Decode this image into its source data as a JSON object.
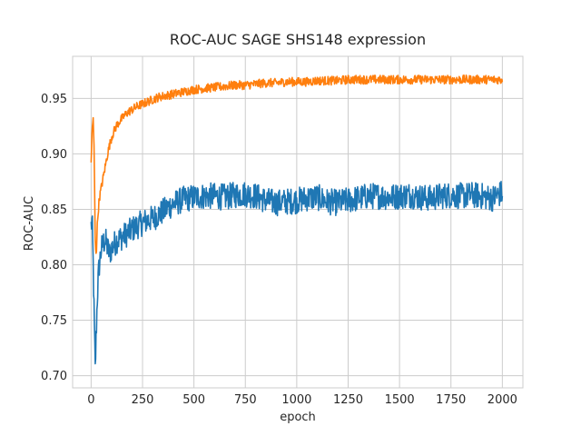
{
  "chart_data": {
    "type": "line",
    "title": "ROC-AUC SAGE SHS148 expression",
    "xlabel": "epoch",
    "ylabel": "ROC-AUC",
    "xlim": [
      -90,
      2100
    ],
    "ylim": [
      0.689,
      0.988
    ],
    "xticks": [
      0,
      250,
      500,
      750,
      1000,
      1250,
      1500,
      1750,
      2000
    ],
    "xtick_labels": [
      "0",
      "250",
      "500",
      "750",
      "1000",
      "1250",
      "1500",
      "1750",
      "2000"
    ],
    "yticks": [
      0.7,
      0.75,
      0.8,
      0.85,
      0.9,
      0.95
    ],
    "ytick_labels": [
      "0.70",
      "0.75",
      "0.80",
      "0.85",
      "0.90",
      "0.95"
    ],
    "grid": true,
    "series": [
      {
        "color": "#1f77b4",
        "x": [
          0,
          5,
          10,
          15,
          20,
          25,
          30,
          35,
          40,
          50,
          60,
          70,
          80,
          90,
          100,
          110,
          125,
          150,
          175,
          200,
          225,
          250,
          275,
          300,
          325,
          350,
          375,
          400,
          425,
          450,
          475,
          500,
          550,
          600,
          650,
          700,
          750,
          800,
          850,
          900,
          950,
          1000,
          1050,
          1100,
          1150,
          1200,
          1250,
          1300,
          1350,
          1400,
          1450,
          1500,
          1550,
          1600,
          1650,
          1700,
          1750,
          1800,
          1850,
          1900,
          1950,
          2000
        ],
        "y": [
          0.835,
          0.84,
          0.8,
          0.75,
          0.705,
          0.74,
          0.77,
          0.79,
          0.8,
          0.815,
          0.82,
          0.822,
          0.815,
          0.81,
          0.815,
          0.818,
          0.822,
          0.825,
          0.828,
          0.832,
          0.835,
          0.838,
          0.84,
          0.842,
          0.845,
          0.848,
          0.852,
          0.855,
          0.857,
          0.859,
          0.86,
          0.861,
          0.862,
          0.862,
          0.861,
          0.863,
          0.864,
          0.862,
          0.858,
          0.856,
          0.857,
          0.858,
          0.86,
          0.861,
          0.857,
          0.856,
          0.858,
          0.86,
          0.862,
          0.862,
          0.861,
          0.862,
          0.863,
          0.861,
          0.86,
          0.862,
          0.863,
          0.862,
          0.863,
          0.862,
          0.86,
          0.865
        ],
        "noise": 0.012
      },
      {
        "color": "#ff7f0e",
        "x": [
          0,
          5,
          10,
          15,
          20,
          25,
          30,
          35,
          40,
          50,
          60,
          70,
          80,
          90,
          100,
          110,
          125,
          150,
          175,
          200,
          225,
          250,
          275,
          300,
          325,
          350,
          375,
          400,
          425,
          450,
          475,
          500,
          550,
          600,
          650,
          700,
          750,
          800,
          850,
          900,
          950,
          1000,
          1050,
          1100,
          1150,
          1200,
          1250,
          1300,
          1350,
          1400,
          1450,
          1500,
          1550,
          1600,
          1650,
          1700,
          1750,
          1800,
          1850,
          1900,
          1950,
          2000
        ],
        "y": [
          0.89,
          0.925,
          0.93,
          0.9,
          0.82,
          0.81,
          0.835,
          0.85,
          0.86,
          0.87,
          0.88,
          0.89,
          0.9,
          0.908,
          0.915,
          0.92,
          0.926,
          0.932,
          0.937,
          0.94,
          0.943,
          0.945,
          0.947,
          0.949,
          0.951,
          0.952,
          0.953,
          0.954,
          0.955,
          0.956,
          0.957,
          0.958,
          0.959,
          0.96,
          0.961,
          0.962,
          0.962,
          0.963,
          0.964,
          0.964,
          0.965,
          0.965,
          0.965,
          0.966,
          0.966,
          0.966,
          0.967,
          0.967,
          0.967,
          0.967,
          0.967,
          0.967,
          0.967,
          0.967,
          0.967,
          0.967,
          0.967,
          0.967,
          0.967,
          0.967,
          0.967,
          0.967
        ],
        "noise": 0.004
      }
    ]
  }
}
